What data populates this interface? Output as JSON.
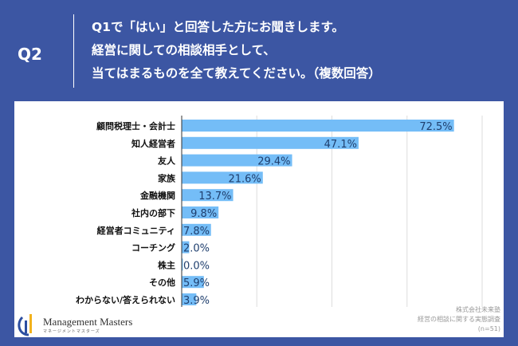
{
  "header": {
    "label": "Q2",
    "question_lines": [
      "Q1で「はい」と回答した方にお聞きします。",
      "経営に関しての相談相手として、",
      "当てはまるものを全て教えてください。（複数回答）"
    ]
  },
  "chart_data": {
    "type": "bar",
    "orientation": "horizontal",
    "categories": [
      "顧問税理士・会計士",
      "知人経営者",
      "友人",
      "家族",
      "金融機関",
      "社内の部下",
      "経営者コミュニティ",
      "コーチング",
      "株主",
      "その他",
      "わからない/答えられない"
    ],
    "values": [
      72.5,
      47.1,
      29.4,
      21.6,
      13.7,
      9.8,
      7.8,
      2.0,
      0.0,
      5.9,
      3.9
    ],
    "data_labels": [
      "72.5%",
      "47.1%",
      "29.4%",
      "21.6%",
      "13.7%",
      "9.8%",
      "7.8%",
      "2.0%",
      "0.0%",
      "5.9%",
      "3.9%"
    ],
    "xlim": [
      0,
      80
    ],
    "grid": true,
    "bar_color": "#74bdf7"
  },
  "logo": {
    "name": "Management Masters",
    "sub": "マネージメントマスターズ"
  },
  "source": {
    "company": "株式会社未来塾",
    "survey": "経営の相談に関する実態調査",
    "n": "(n=51)"
  }
}
